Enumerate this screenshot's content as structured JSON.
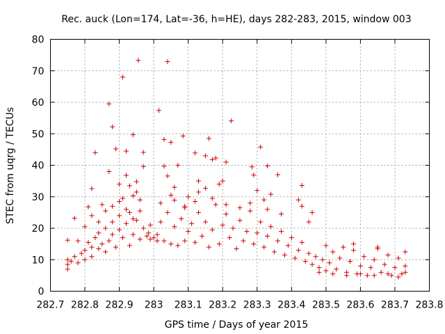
{
  "chart_data": {
    "type": "scatter",
    "title": "Rec. auck (Lon=174, Lat=-36, h=HE), days 282-283, 2015, window 003",
    "xlabel": "GPS time / Days of year 2015",
    "ylabel": "STEC from uqrg / TECUs",
    "xlim": [
      282.7,
      283.8
    ],
    "ylim": [
      0,
      80
    ],
    "xticks": [
      "282.7",
      "282.8",
      "282.9",
      "283",
      "283.1",
      "283.2",
      "283.3",
      "283.4",
      "283.5",
      "283.6",
      "283.7",
      "283.8"
    ],
    "yticks": [
      "0",
      "10",
      "20",
      "30",
      "40",
      "50",
      "60",
      "70",
      "80"
    ],
    "grid": true,
    "marker": "+",
    "color": "#cc0000",
    "series": [
      {
        "points": [
          [
            282.75,
            16.2
          ],
          [
            282.77,
            23.2
          ],
          [
            282.81,
            26.8
          ],
          [
            282.82,
            32.6
          ],
          [
            282.83,
            44.0
          ],
          [
            282.85,
            27.5
          ],
          [
            282.87,
            38.0
          ],
          [
            282.87,
            59.5
          ],
          [
            282.88,
            52.2
          ],
          [
            282.89,
            45.2
          ],
          [
            282.9,
            34.0
          ],
          [
            282.91,
            68.0
          ],
          [
            282.92,
            44.5
          ],
          [
            282.92,
            36.8
          ],
          [
            282.94,
            49.7
          ],
          [
            282.95,
            34.8
          ],
          [
            282.955,
            73.3
          ],
          [
            282.96,
            29.0
          ],
          [
            282.97,
            44.1
          ],
          [
            282.97,
            39.6
          ],
          [
            282.93,
            33.5
          ],
          [
            282.94,
            30.3
          ],
          [
            282.95,
            31.5
          ],
          [
            282.91,
            29.5
          ],
          [
            283.015,
            57.4
          ],
          [
            283.03,
            48.2
          ],
          [
            283.03,
            39.7
          ],
          [
            283.04,
            72.9
          ],
          [
            283.05,
            47.3
          ],
          [
            283.04,
            36.6
          ],
          [
            283.06,
            33.0
          ],
          [
            283.07,
            40.0
          ],
          [
            283.085,
            49.3
          ],
          [
            283.09,
            26.5
          ],
          [
            283.12,
            43.9
          ],
          [
            283.13,
            35.0
          ],
          [
            283.15,
            43.0
          ],
          [
            283.16,
            48.5
          ],
          [
            283.17,
            41.8
          ],
          [
            283.18,
            42.3
          ],
          [
            283.19,
            34.0
          ],
          [
            283.2,
            35.0
          ],
          [
            283.21,
            41.0
          ],
          [
            283.225,
            54.1
          ],
          [
            283.15,
            32.7
          ],
          [
            283.1,
            30.0
          ],
          [
            283.06,
            28.9
          ],
          [
            283.13,
            31.5
          ],
          [
            283.285,
            39.5
          ],
          [
            283.29,
            36.9
          ],
          [
            283.31,
            45.8
          ],
          [
            283.33,
            39.8
          ],
          [
            283.34,
            30.8
          ],
          [
            283.36,
            37.0
          ],
          [
            283.32,
            29.0
          ],
          [
            283.3,
            32.0
          ],
          [
            283.42,
            29.0
          ],
          [
            283.43,
            33.6
          ],
          [
            283.43,
            27.0
          ],
          [
            283.46,
            25.0
          ],
          [
            283.45,
            22.0
          ],
          [
            282.75,
            10.0
          ],
          [
            282.75,
            8.5
          ],
          [
            282.75,
            7.0
          ],
          [
            282.76,
            9.5
          ],
          [
            282.77,
            11.0
          ],
          [
            282.78,
            9.0
          ],
          [
            282.79,
            12.0
          ],
          [
            282.8,
            13.0
          ],
          [
            282.8,
            10.0
          ],
          [
            282.81,
            15.5
          ],
          [
            282.82,
            14.0
          ],
          [
            282.82,
            11.0
          ],
          [
            282.83,
            17.0
          ],
          [
            282.84,
            13.5
          ],
          [
            282.84,
            18.5
          ],
          [
            282.85,
            15.0
          ],
          [
            282.86,
            20.0
          ],
          [
            282.86,
            12.5
          ],
          [
            282.87,
            16.0
          ],
          [
            282.88,
            22.0
          ],
          [
            282.88,
            18.0
          ],
          [
            282.89,
            14.0
          ],
          [
            282.9,
            24.0
          ],
          [
            282.9,
            19.5
          ],
          [
            282.91,
            17.0
          ],
          [
            282.92,
            21.5
          ],
          [
            282.93,
            25.0
          ],
          [
            282.93,
            14.5
          ],
          [
            282.94,
            18.0
          ],
          [
            282.95,
            22.5
          ],
          [
            282.96,
            16.5
          ],
          [
            282.97,
            20.0
          ],
          [
            282.98,
            17.5
          ],
          [
            282.99,
            21.0
          ],
          [
            282.78,
            16.0
          ],
          [
            282.8,
            20.5
          ],
          [
            282.82,
            24.0
          ],
          [
            282.84,
            22.0
          ],
          [
            282.86,
            25.5
          ],
          [
            282.88,
            27.0
          ],
          [
            282.9,
            28.5
          ],
          [
            282.92,
            26.0
          ],
          [
            282.94,
            23.0
          ],
          [
            282.96,
            25.5
          ],
          [
            283.01,
            18.0
          ],
          [
            283.02,
            22.0
          ],
          [
            283.03,
            16.0
          ],
          [
            283.04,
            25.0
          ],
          [
            283.05,
            15.0
          ],
          [
            283.06,
            20.5
          ],
          [
            283.07,
            14.5
          ],
          [
            283.08,
            23.0
          ],
          [
            283.09,
            16.0
          ],
          [
            283.1,
            19.0
          ],
          [
            283.11,
            21.5
          ],
          [
            283.12,
            15.5
          ],
          [
            283.13,
            25.0
          ],
          [
            283.14,
            17.5
          ],
          [
            283.15,
            22.0
          ],
          [
            283.16,
            14.0
          ],
          [
            283.17,
            19.5
          ],
          [
            283.18,
            27.5
          ],
          [
            283.19,
            15.0
          ],
          [
            283.2,
            21.0
          ],
          [
            283.21,
            24.5
          ],
          [
            283.22,
            17.0
          ],
          [
            283.23,
            20.0
          ],
          [
            283.24,
            13.5
          ],
          [
            283.25,
            22.5
          ],
          [
            283.26,
            16.0
          ],
          [
            283.27,
            19.0
          ],
          [
            283.28,
            25.5
          ],
          [
            283.29,
            15.0
          ],
          [
            283.3,
            18.5
          ],
          [
            283.31,
            22.0
          ],
          [
            283.32,
            14.0
          ],
          [
            283.33,
            17.5
          ],
          [
            283.34,
            20.5
          ],
          [
            283.35,
            12.5
          ],
          [
            283.36,
            16.0
          ],
          [
            283.37,
            19.0
          ],
          [
            283.38,
            11.5
          ],
          [
            283.39,
            14.5
          ],
          [
            283.4,
            17.0
          ],
          [
            283.41,
            10.5
          ],
          [
            283.42,
            13.0
          ],
          [
            283.43,
            15.5
          ],
          [
            283.44,
            9.5
          ],
          [
            283.45,
            12.0
          ],
          [
            283.46,
            8.5
          ],
          [
            283.47,
            11.0
          ],
          [
            283.48,
            7.5
          ],
          [
            283.49,
            10.0
          ],
          [
            283.5,
            6.5
          ],
          [
            283.51,
            9.0
          ],
          [
            283.52,
            12.5
          ],
          [
            283.53,
            7.0
          ],
          [
            283.54,
            10.5
          ],
          [
            283.55,
            14.0
          ],
          [
            283.56,
            6.0
          ],
          [
            283.57,
            9.5
          ],
          [
            283.58,
            13.0
          ],
          [
            283.59,
            5.5
          ],
          [
            283.6,
            8.0
          ],
          [
            283.61,
            11.0
          ],
          [
            283.62,
            5.0
          ],
          [
            283.63,
            7.5
          ],
          [
            283.64,
            10.0
          ],
          [
            283.65,
            13.5
          ],
          [
            283.66,
            6.0
          ],
          [
            283.67,
            8.5
          ],
          [
            283.68,
            11.5
          ],
          [
            283.69,
            5.0
          ],
          [
            283.7,
            7.5
          ],
          [
            283.71,
            10.5
          ],
          [
            283.72,
            5.5
          ],
          [
            283.73,
            8.0
          ],
          [
            283.73,
            12.5
          ],
          [
            283.73,
            6.0
          ],
          [
            283.02,
            28.0
          ],
          [
            283.05,
            30.5
          ],
          [
            283.09,
            27.0
          ],
          [
            283.12,
            28.5
          ],
          [
            283.17,
            29.5
          ],
          [
            283.21,
            27.5
          ],
          [
            283.25,
            26.5
          ],
          [
            283.28,
            28.0
          ],
          [
            283.33,
            26.0
          ],
          [
            283.37,
            24.5
          ],
          [
            283.48,
            6.0
          ],
          [
            283.52,
            5.5
          ],
          [
            283.56,
            5.0
          ],
          [
            283.6,
            5.5
          ],
          [
            283.64,
            5.0
          ],
          [
            283.68,
            5.5
          ],
          [
            283.71,
            4.5
          ],
          [
            283.5,
            14.5
          ],
          [
            283.58,
            15.0
          ],
          [
            283.65,
            14.0
          ],
          [
            282.985,
            18.5
          ],
          [
            282.99,
            16.5
          ],
          [
            283.0,
            17.0
          ],
          [
            283.01,
            16.0
          ]
        ]
      }
    ]
  }
}
